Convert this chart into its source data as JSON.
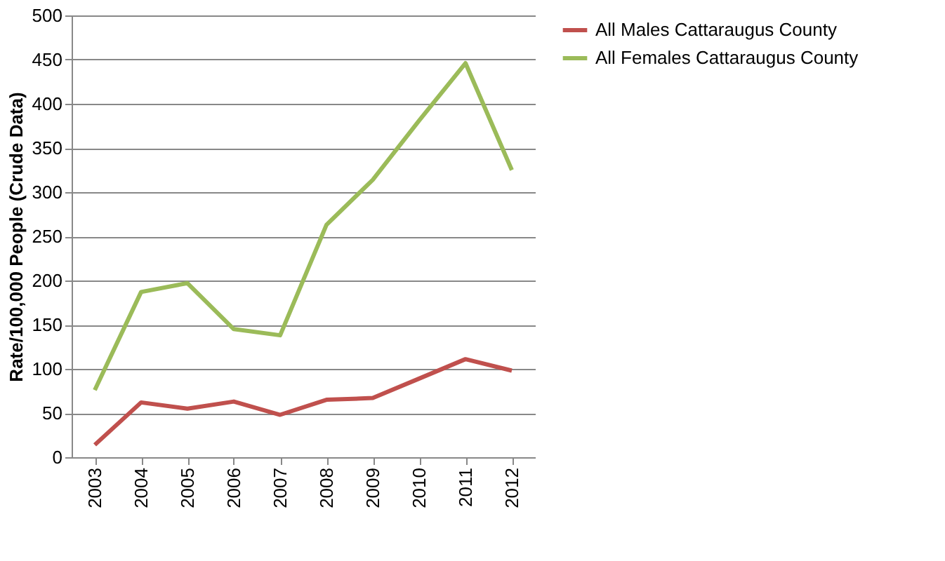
{
  "chart_data": {
    "type": "line",
    "categories": [
      "2003",
      "2004",
      "2005",
      "2006",
      "2007",
      "2008",
      "2009",
      "2010",
      "2011",
      "2012"
    ],
    "ylabel": "Rate/100,000 People (Crude Data)",
    "ylim": [
      0,
      500
    ],
    "yticks": [
      0,
      50,
      100,
      150,
      200,
      250,
      300,
      350,
      400,
      450,
      500
    ],
    "grid": "y",
    "legend": "right",
    "marker": "none",
    "series": [
      {
        "name": "All Males Cattaraugus County",
        "color": "#c0504d",
        "values": [
          14,
          62,
          55,
          63,
          48,
          65,
          67,
          89,
          111,
          98
        ]
      },
      {
        "name": "All Females Cattaraugus County",
        "color": "#9bbb59",
        "values": [
          76,
          187,
          197,
          145,
          138,
          263,
          314,
          381,
          446,
          325
        ]
      }
    ]
  }
}
